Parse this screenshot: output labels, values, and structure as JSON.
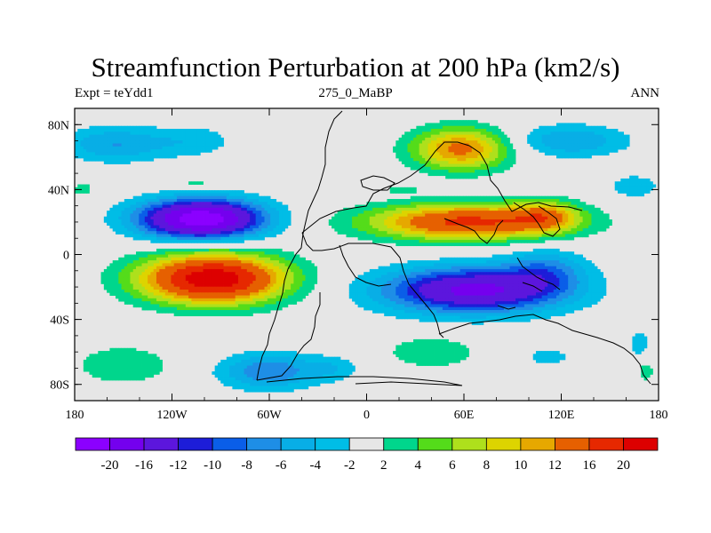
{
  "chart_data": {
    "type": "heatmap",
    "title": "Streamfunction Perturbation at 200 hPa (km2/s)",
    "subtitle_left": "Expt = teYdd1",
    "subtitle_center": "275_0_MaBP",
    "subtitle_right": "ANN",
    "x_range": [
      -180,
      180
    ],
    "y_range": [
      -90,
      90
    ],
    "x_ticks": [
      {
        "value": -180,
        "label": "180"
      },
      {
        "value": -120,
        "label": "120W"
      },
      {
        "value": -60,
        "label": "60W"
      },
      {
        "value": 0,
        "label": "0"
      },
      {
        "value": 60,
        "label": "60E"
      },
      {
        "value": 120,
        "label": "120E"
      },
      {
        "value": 180,
        "label": "180"
      }
    ],
    "y_ticks": [
      {
        "value": 80,
        "label": "80N"
      },
      {
        "value": 40,
        "label": "40N"
      },
      {
        "value": 0,
        "label": "0"
      },
      {
        "value": -40,
        "label": "40S"
      },
      {
        "value": -80,
        "label": "80S"
      }
    ],
    "colorbar": {
      "levels": [
        "-20",
        "-16",
        "-12",
        "-10",
        "-8",
        "-6",
        "-4",
        "-2",
        "2",
        "4",
        "6",
        "8",
        "10",
        "12",
        "16",
        "20"
      ],
      "colors": [
        "#8b00ff",
        "#7400ee",
        "#5c16dd",
        "#1d1dd8",
        "#0a5ee8",
        "#1e8ee6",
        "#08aee6",
        "#00bde6",
        "#e6e6e6",
        "#00d68c",
        "#54dc1a",
        "#aee01c",
        "#ddd400",
        "#e6a800",
        "#e66000",
        "#e62800",
        "#dd0000"
      ]
    },
    "anomalies": [
      {
        "lon": -102,
        "lat": 22,
        "value": -23,
        "rx": 38,
        "ry": 12
      },
      {
        "lon": -95,
        "lat": -15,
        "value": 23,
        "rx": 44,
        "ry": 15
      },
      {
        "lon": 65,
        "lat": -22,
        "value": -17,
        "rx": 55,
        "ry": 14
      },
      {
        "lon": 110,
        "lat": -10,
        "value": -6,
        "rx": 25,
        "ry": 14
      },
      {
        "lon": 62,
        "lat": 20,
        "value": 17,
        "rx": 60,
        "ry": 11
      },
      {
        "lon": 110,
        "lat": 24,
        "value": 8,
        "rx": 20,
        "ry": 9
      },
      {
        "lon": 58,
        "lat": 65,
        "value": 13,
        "rx": 30,
        "ry": 13
      },
      {
        "lon": -155,
        "lat": 68,
        "value": -6,
        "rx": 34,
        "ry": 11
      },
      {
        "lon": 125,
        "lat": 70,
        "value": -6,
        "rx": 36,
        "ry": 10
      },
      {
        "lon": -105,
        "lat": 70,
        "value": -3,
        "rx": 25,
        "ry": 10
      },
      {
        "lon": 165,
        "lat": 42,
        "value": -4,
        "rx": 15,
        "ry": 7
      },
      {
        "lon": -175,
        "lat": 40,
        "value": 3,
        "rx": 8,
        "ry": 5
      },
      {
        "lon": -105,
        "lat": 44,
        "value": 3,
        "rx": 15,
        "ry": 4
      },
      {
        "lon": 22,
        "lat": 40,
        "value": 2.5,
        "rx": 12,
        "ry": 3
      },
      {
        "lon": -150,
        "lat": -68,
        "value": 4,
        "rx": 30,
        "ry": 12
      },
      {
        "lon": -60,
        "lat": -72,
        "value": -8,
        "rx": 30,
        "ry": 11
      },
      {
        "lon": -20,
        "lat": -70,
        "value": -3,
        "rx": 16,
        "ry": 8
      },
      {
        "lon": 40,
        "lat": -60,
        "value": 4,
        "rx": 28,
        "ry": 10
      },
      {
        "lon": 112,
        "lat": -63,
        "value": -4,
        "rx": 12,
        "ry": 5
      },
      {
        "lon": 168,
        "lat": -55,
        "value": -3,
        "rx": 8,
        "ry": 10
      },
      {
        "lon": 172,
        "lat": -72,
        "value": 3,
        "rx": 6,
        "ry": 8
      }
    ]
  }
}
